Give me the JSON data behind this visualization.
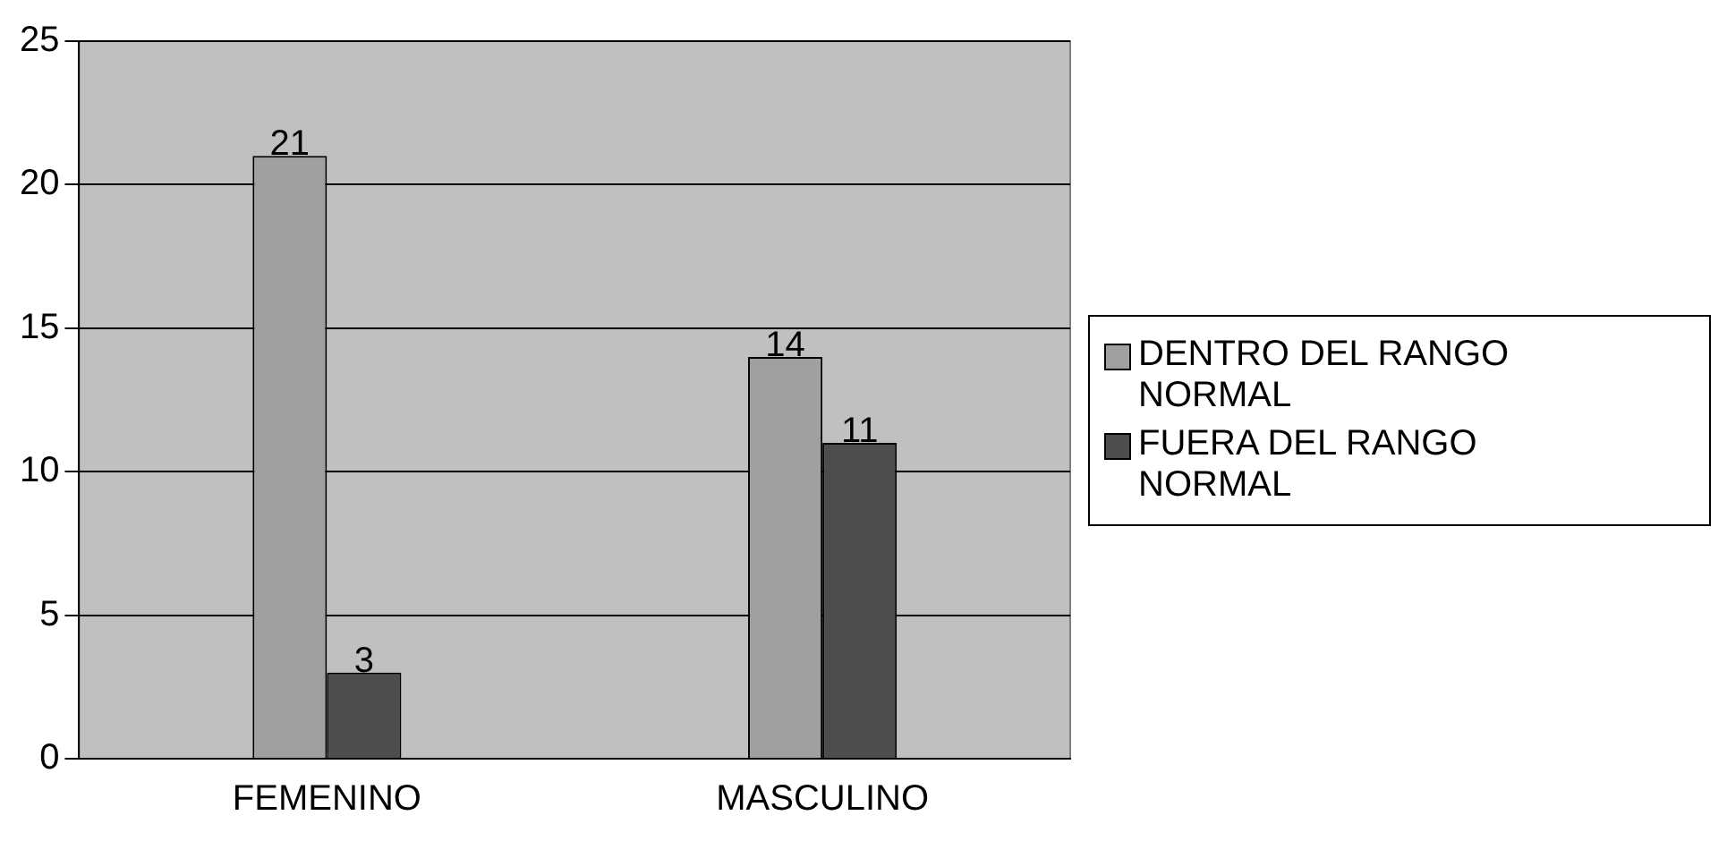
{
  "chart_data": {
    "type": "bar",
    "categories": [
      "FEMENINO",
      "MASCULINO"
    ],
    "series": [
      {
        "name": "DENTRO DEL RANGO NORMAL",
        "color": "#a0a0a0",
        "values": [
          21,
          14
        ]
      },
      {
        "name": "FUERA DEL RANGO NORMAL",
        "color": "#4d4d4d",
        "values": [
          3,
          11
        ]
      }
    ],
    "ylim": [
      0,
      25
    ],
    "yticks": [
      0,
      5,
      10,
      15,
      20,
      25
    ],
    "grid": "y",
    "legend": "right",
    "data_labels": true
  }
}
